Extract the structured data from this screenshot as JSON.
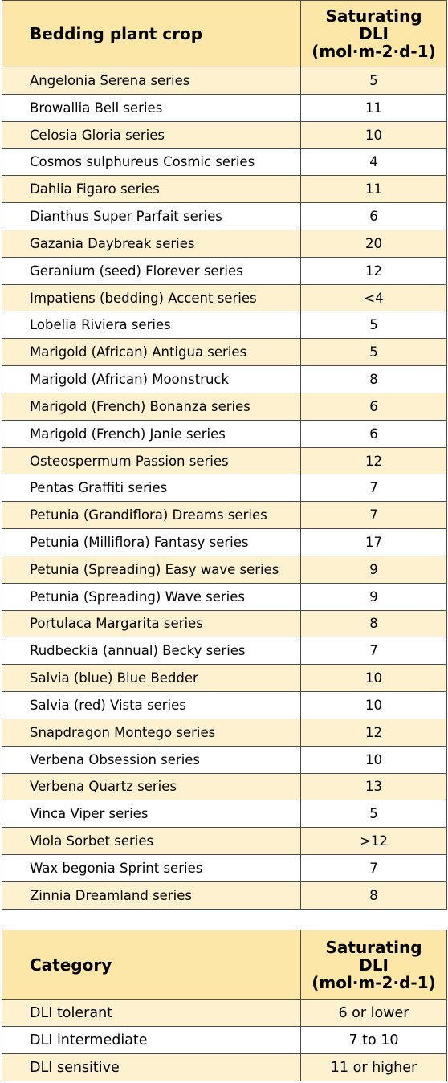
{
  "crops_table": {
    "header_crop": "Bedding plant crop",
    "header_dli_line1": "Saturating",
    "header_dli_line2": "DLI",
    "header_dli_line3": "(mol·m-2·d-1)",
    "rows": [
      {
        "name": "Angelonia Serena series",
        "value": "5"
      },
      {
        "name": "Browallia Bell series",
        "value": "11"
      },
      {
        "name": "Celosia Gloria series",
        "value": "10"
      },
      {
        "name": "Cosmos sulphureus Cosmic series",
        "value": "4"
      },
      {
        "name": "Dahlia Figaro series",
        "value": "11"
      },
      {
        "name": "Dianthus Super Parfait series",
        "value": "6"
      },
      {
        "name": "Gazania Daybreak series",
        "value": "20"
      },
      {
        "name": "Geranium (seed) Florever series",
        "value": "12"
      },
      {
        "name": "Impatiens (bedding) Accent series",
        "value": "<4"
      },
      {
        "name": "Lobelia Riviera series",
        "value": "5"
      },
      {
        "name": "Marigold (African) Antigua series",
        "value": "5"
      },
      {
        "name": "Marigold (African) Moonstruck",
        "value": "8"
      },
      {
        "name": "Marigold (French) Bonanza series",
        "value": "6"
      },
      {
        "name": "Marigold (French) Janie series",
        "value": "6"
      },
      {
        "name": "Osteospermum Passion series",
        "value": "12"
      },
      {
        "name": "Pentas Graffiti series",
        "value": "7"
      },
      {
        "name": "Petunia (Grandiflora) Dreams series",
        "value": "7"
      },
      {
        "name": "Petunia (Milliflora) Fantasy series",
        "value": "17"
      },
      {
        "name": "Petunia (Spreading) Easy wave series",
        "value": "9"
      },
      {
        "name": "Petunia (Spreading) Wave series",
        "value": "9"
      },
      {
        "name": "Portulaca Margarita series",
        "value": "8"
      },
      {
        "name": "Rudbeckia (annual) Becky series",
        "value": "7"
      },
      {
        "name": "Salvia (blue) Blue Bedder",
        "value": "10"
      },
      {
        "name": "Salvia (red) Vista series",
        "value": "10"
      },
      {
        "name": "Snapdragon Montego series",
        "value": "12"
      },
      {
        "name": "Verbena Obsession series",
        "value": "10"
      },
      {
        "name": "Verbena Quartz series",
        "value": "13"
      },
      {
        "name": "Vinca Viper series",
        "value": "5"
      },
      {
        "name": "Viola Sorbet series",
        "value": ">12"
      },
      {
        "name": "Wax begonia Sprint series",
        "value": "7"
      },
      {
        "name": "Zinnia Dreamland series",
        "value": "8"
      }
    ]
  },
  "category_table": {
    "header_category": "Category",
    "header_dli_line1": "Saturating",
    "header_dli_line2": "DLI",
    "header_dli_line3": "(mol·m-2·d-1)",
    "rows": [
      {
        "name": "DLI tolerant",
        "value": "6 or lower"
      },
      {
        "name": "DLI intermediate",
        "value": "7 to 10"
      },
      {
        "name": "DLI sensitive",
        "value": "11 or higher"
      }
    ]
  },
  "colors": {
    "header_bg": "#fde7a8",
    "stripe_bg": "#fdf1cf",
    "border": "#4a4a4a"
  }
}
